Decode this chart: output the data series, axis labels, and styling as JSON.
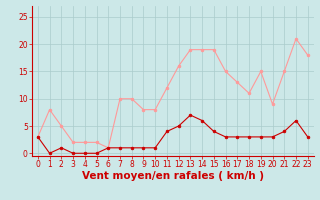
{
  "hours": [
    0,
    1,
    2,
    3,
    4,
    5,
    6,
    7,
    8,
    9,
    10,
    11,
    12,
    13,
    14,
    15,
    16,
    17,
    18,
    19,
    20,
    21,
    22,
    23
  ],
  "wind_avg": [
    3,
    0,
    1,
    0,
    0,
    0,
    1,
    1,
    1,
    1,
    1,
    4,
    5,
    7,
    6,
    4,
    3,
    3,
    3,
    3,
    3,
    4,
    6,
    3
  ],
  "wind_gust": [
    3,
    8,
    5,
    2,
    2,
    2,
    1,
    10,
    10,
    8,
    8,
    12,
    16,
    19,
    19,
    19,
    15,
    13,
    11,
    15,
    9,
    15,
    21,
    18
  ],
  "avg_color": "#cc0000",
  "gust_color": "#ff9999",
  "bg_color": "#cce8e8",
  "grid_color": "#aacccc",
  "axis_color": "#cc0000",
  "tick_color": "#cc0000",
  "xlabel": "Vent moyen/en rafales ( km/h )",
  "xlabel_color": "#cc0000",
  "yticks": [
    0,
    5,
    10,
    15,
    20,
    25
  ],
  "xticks": [
    0,
    1,
    2,
    3,
    4,
    5,
    6,
    7,
    8,
    9,
    10,
    11,
    12,
    13,
    14,
    15,
    16,
    17,
    18,
    19,
    20,
    21,
    22,
    23
  ],
  "ylim": [
    -0.5,
    27
  ],
  "xlim": [
    -0.5,
    23.5
  ],
  "tick_fontsize": 5.5,
  "xlabel_fontsize": 7.5,
  "marker_size": 2.0,
  "line_width": 0.8
}
